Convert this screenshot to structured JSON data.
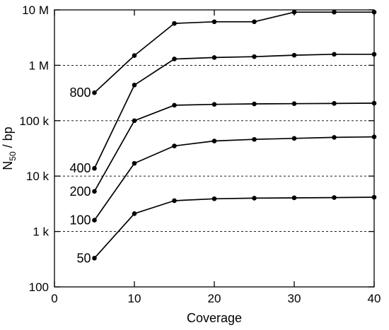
{
  "chart_data": {
    "type": "line",
    "xlabel": "Coverage",
    "ylabel": {
      "main": "N",
      "subscript": "50",
      "rest": " / bp"
    },
    "xlim": [
      0,
      40
    ],
    "ylim": [
      100,
      10000000
    ],
    "y_scale": "log",
    "x_ticks": [
      0,
      10,
      20,
      30,
      40
    ],
    "x_tick_labels": [
      "0",
      "10",
      "20",
      "30",
      "40"
    ],
    "y_ticks": [
      100,
      1000,
      10000,
      100000,
      1000000,
      10000000
    ],
    "y_tick_labels": [
      "100",
      "1 k",
      "10 k",
      "100 k",
      "1 M",
      "10 M"
    ],
    "gridlines": "horizontal dashed at 1 k, 10 k, 100 k, 1 M",
    "line_color": "#000000",
    "x": [
      5,
      10,
      15,
      20,
      25,
      30,
      35,
      40
    ],
    "series": [
      {
        "name": "800",
        "values": [
          320000,
          1500000,
          5700000,
          6100000,
          6100000,
          9100000,
          9100000,
          9100000
        ]
      },
      {
        "name": "400",
        "values": [
          13800,
          440000,
          1300000,
          1380000,
          1430000,
          1520000,
          1580000,
          1580000
        ]
      },
      {
        "name": "200",
        "values": [
          5300,
          100000,
          190000,
          197000,
          201000,
          203000,
          205000,
          207000
        ]
      },
      {
        "name": "100",
        "values": [
          1600,
          17000,
          35000,
          43000,
          46000,
          48000,
          50000,
          51000
        ]
      },
      {
        "name": "50",
        "values": [
          330,
          2100,
          3600,
          3900,
          4000,
          4050,
          4100,
          4150
        ]
      }
    ]
  }
}
